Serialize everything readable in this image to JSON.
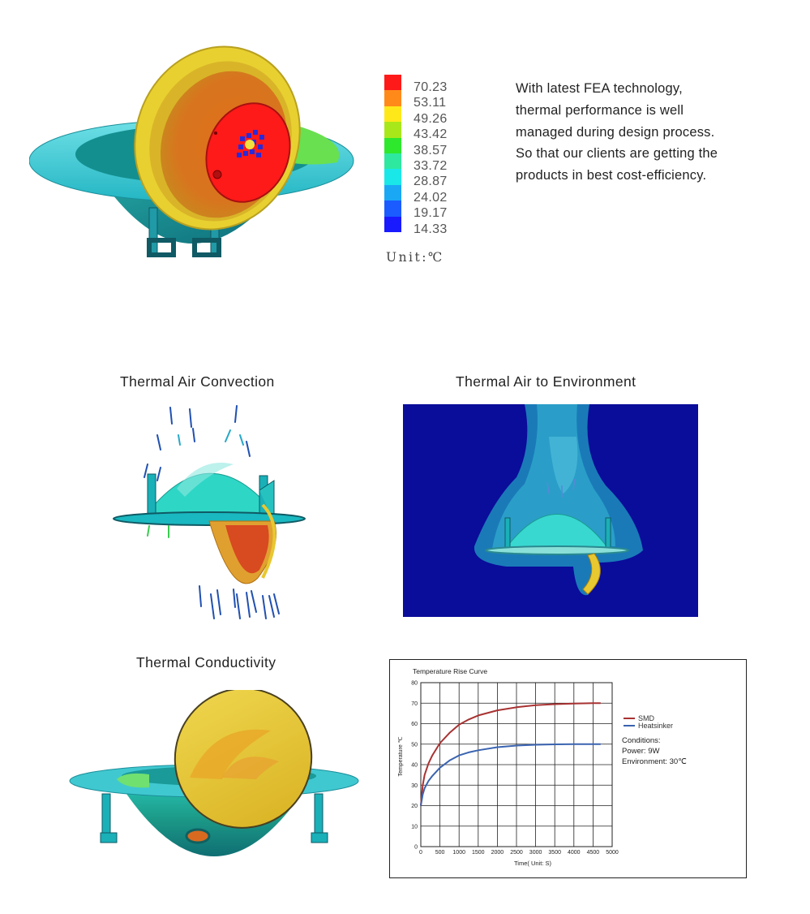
{
  "legend": {
    "values": [
      "70.23",
      "53.11",
      "49.26",
      "43.42",
      "38.57",
      "33.72",
      "28.87",
      "24.02",
      "19.17",
      "14.33"
    ],
    "colors": [
      "#ff1a1a",
      "#ff8a1a",
      "#ffe81a",
      "#a8e81a",
      "#2ee82e",
      "#2ee8a0",
      "#1ae8e8",
      "#1aa8f5",
      "#1a5cff",
      "#1a1aff"
    ],
    "unit": "Unit:℃"
  },
  "description": "With latest FEA technology, thermal performance is well managed during design process. So that our clients are getting the products in best cost-efficiency.",
  "sections": {
    "convection": "Thermal Air Convection",
    "environment": "Thermal Air to Environment",
    "conductivity": "Thermal Conductivity"
  },
  "chart_data": {
    "type": "line",
    "title": "Temperature Rise Curve",
    "xlabel": "Time( Unit: S)",
    "ylabel": "Temperature ℃",
    "xlim": [
      0,
      5000
    ],
    "ylim": [
      0,
      80
    ],
    "xticks": [
      0,
      500,
      1000,
      1500,
      2000,
      2500,
      3000,
      3500,
      4000,
      4500,
      5000
    ],
    "yticks": [
      0,
      10,
      20,
      30,
      40,
      50,
      60,
      70,
      80
    ],
    "grid": true,
    "legend_position": "right",
    "series": [
      {
        "name": "SMD",
        "color": "#a83232",
        "x": [
          0,
          50,
          100,
          200,
          300,
          500,
          750,
          1000,
          1250,
          1500,
          2000,
          2500,
          3000,
          3500,
          4000,
          4500,
          4700
        ],
        "y": [
          20,
          30,
          35,
          40.5,
          44.5,
          50.5,
          55.5,
          59.5,
          62,
          64,
          66.5,
          68,
          69,
          69.5,
          69.8,
          70,
          70
        ]
      },
      {
        "name": "Heatsinker",
        "color": "#3a63b0",
        "x": [
          0,
          50,
          100,
          200,
          300,
          500,
          750,
          1000,
          1250,
          1500,
          2000,
          2500,
          3000,
          3500,
          4000,
          4500,
          4700
        ],
        "y": [
          20,
          25.5,
          28.5,
          32,
          34.5,
          38.5,
          42,
          44.5,
          46,
          47,
          48.5,
          49.3,
          49.7,
          49.9,
          50,
          50,
          50
        ]
      }
    ],
    "conditions": {
      "heading": "Conditions:",
      "power": "Power:  9W",
      "environment": "Environment:  30℃"
    }
  }
}
